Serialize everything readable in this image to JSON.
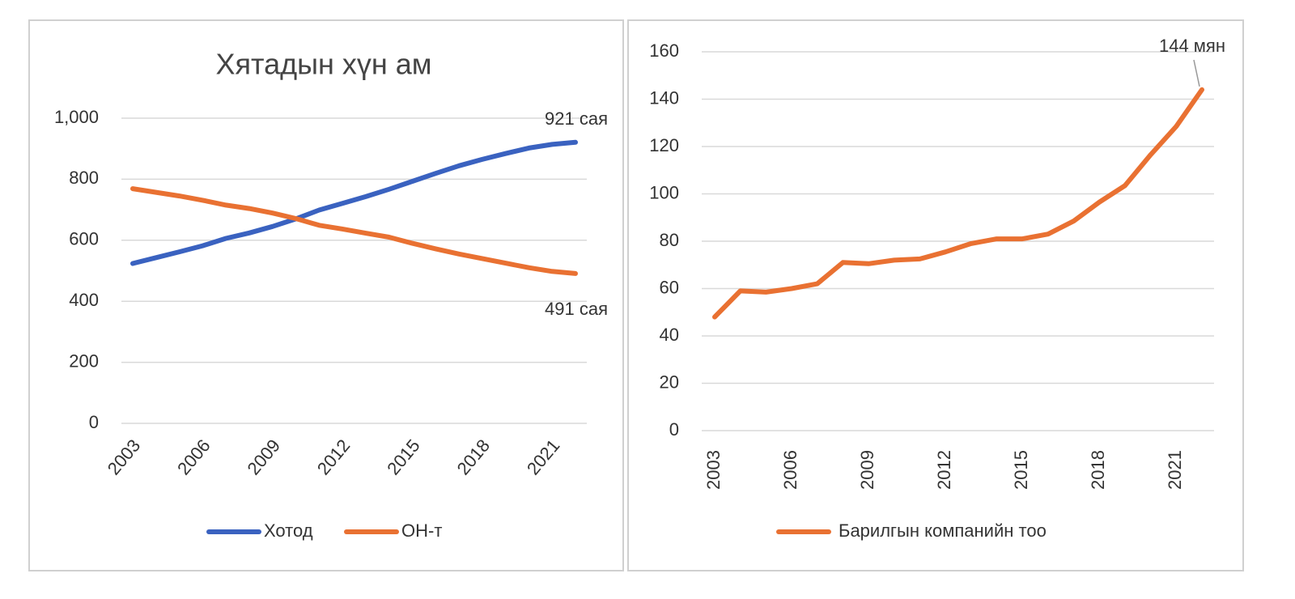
{
  "chart_data": [
    {
      "type": "line",
      "title": "Хятадын хүн ам",
      "categories": [
        "2003",
        null,
        null,
        "2006",
        null,
        null,
        "2009",
        null,
        null,
        "2012",
        null,
        null,
        "2015",
        null,
        null,
        "2018",
        null,
        null,
        "2021",
        null
      ],
      "series": [
        {
          "name": "Хотод",
          "color": "#3a62c0",
          "values": [
            524,
            543,
            562,
            582,
            606,
            624,
            645,
            670,
            699,
            721,
            743,
            767,
            793,
            819,
            844,
            865,
            884,
            902,
            914,
            921
          ]
        },
        {
          "name": "ОН-т",
          "color": "#e97132",
          "values": [
            769,
            757,
            745,
            731,
            715,
            704,
            689,
            671,
            649,
            637,
            623,
            610,
            590,
            572,
            555,
            540,
            525,
            510,
            498,
            491
          ]
        }
      ],
      "annotations": [
        "921 сая",
        "491 сая"
      ],
      "ylim": [
        0,
        1000
      ],
      "yticks": [
        0,
        200,
        400,
        600,
        800,
        {
          "value": 1000,
          "label": "1,000"
        }
      ],
      "grid": true,
      "legend": "bottom"
    },
    {
      "type": "line",
      "categories": [
        "2003",
        null,
        null,
        "2006",
        null,
        null,
        "2009",
        null,
        null,
        "2012",
        null,
        null,
        "2015",
        null,
        null,
        "2018",
        null,
        null,
        "2021",
        null
      ],
      "series": [
        {
          "name": "Барилгын компанийн тоо",
          "color": "#e97132",
          "values": [
            48,
            59,
            58.5,
            60,
            62,
            71,
            70.5,
            72,
            72.5,
            75.5,
            79,
            81,
            81,
            83,
            88.5,
            96.5,
            103.5,
            116.5,
            128.5,
            144
          ]
        }
      ],
      "annotations": [
        "144 мян"
      ],
      "ylim": [
        0,
        160
      ],
      "yticks": [
        0,
        20,
        40,
        60,
        80,
        100,
        120,
        140,
        160
      ],
      "grid": true,
      "legend": "bottom"
    }
  ]
}
